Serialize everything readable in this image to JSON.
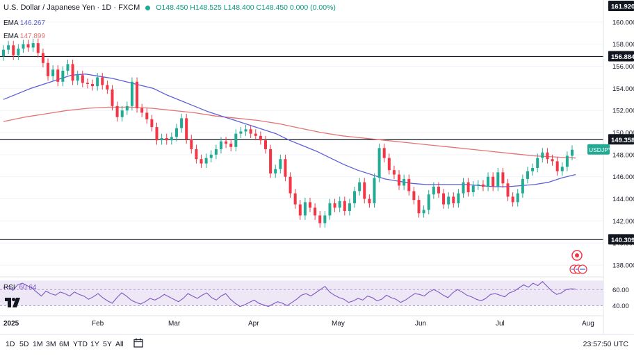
{
  "header": {
    "symbol": "U.S. Dollar / Japanese Yen · 1D · FXCM",
    "ohlc": "O148.450 H148.525 L148.400 C148.450 0.000 (0.00%)"
  },
  "indicators": {
    "ema1_label": "EMA",
    "ema1_value": "146.267",
    "ema2_label": "EMA",
    "ema2_value": "147.899",
    "rsi_label": "RSI",
    "rsi_value": "60.64"
  },
  "bottom_bar": {
    "timeframes": [
      "1D",
      "5D",
      "1M",
      "3M",
      "6M",
      "YTD",
      "1Y",
      "5Y",
      "All"
    ],
    "clock": "23:57:50 UTC"
  },
  "colors": {
    "up": "#22ab94",
    "down": "#f23645",
    "ema_fast": "#5b5fd6",
    "ema_slow": "#e57373",
    "rsi": "#7e57c2",
    "rsi_band": "#ede7f6"
  },
  "chart_data": {
    "type": "candlestick",
    "title": "U.S. Dollar / Japanese Yen · 1D · FXCM",
    "y_range": [
      137,
      162
    ],
    "y_ticks": [
      138,
      140,
      142,
      144,
      146,
      148,
      150,
      152,
      154,
      156,
      158,
      160
    ],
    "y_tick_labels": [
      "138.000",
      "140.000",
      "142.000",
      "144.000",
      "146.000",
      "148.000",
      "150.000",
      "152.000",
      "154.000",
      "156.000",
      "158.000",
      "160.000"
    ],
    "price_badges": [
      {
        "label": "161.920",
        "value": 161.92
      },
      {
        "label": "156.884",
        "value": 156.884
      },
      {
        "label": "149.358",
        "value": 149.358
      },
      {
        "label": "140.309",
        "value": 140.309
      }
    ],
    "horizontal_levels": [
      156.884,
      149.358,
      140.309
    ],
    "symbol_badge": "USDJPY",
    "x_labels": [
      "2025",
      "Feb",
      "Mar",
      "Apr",
      "May",
      "Jun",
      "Jul",
      "Aug"
    ],
    "closes": [
      157.5,
      157.9,
      157.0,
      157.6,
      158.0,
      157.7,
      158.1,
      157.2,
      156.3,
      155.1,
      155.7,
      154.6,
      155.6,
      156.2,
      154.7,
      155.2,
      154.5,
      154.4,
      154.2,
      155.0,
      154.3,
      153.9,
      152.4,
      151.4,
      152.0,
      152.4,
      154.6,
      152.2,
      151.8,
      151.2,
      150.5,
      149.3,
      149.5,
      149.3,
      149.6,
      150.4,
      151.3,
      149.4,
      148.5,
      147.6,
      147.2,
      147.7,
      148.0,
      148.5,
      149.2,
      149.0,
      148.7,
      149.9,
      150.1,
      150.3,
      149.9,
      149.7,
      149.3,
      148.5,
      146.3,
      146.7,
      147.6,
      146.0,
      144.5,
      143.5,
      142.5,
      143.7,
      143.2,
      142.5,
      141.8,
      142.5,
      143.6,
      143.2,
      143.8,
      142.9,
      143.6,
      144.7,
      145.5,
      144.0,
      143.6,
      145.9,
      148.6,
      147.7,
      146.6,
      146.2,
      145.2,
      145.8,
      144.7,
      143.9,
      142.7,
      143.0,
      144.4,
      145.1,
      144.5,
      143.5,
      144.2,
      143.6,
      144.5,
      145.5,
      144.6,
      145.2,
      145.3,
      145.1,
      146.0,
      145.1,
      146.4,
      145.4,
      144.2,
      143.7,
      144.5,
      145.8,
      146.5,
      146.8,
      147.7,
      148.2,
      147.6,
      147.4,
      146.5,
      146.9,
      147.9,
      148.45
    ],
    "ema_fast": [
      153.0,
      153.5,
      154.0,
      154.4,
      154.8,
      155.2,
      155.3,
      155.1,
      154.9,
      154.6,
      154.3,
      154.0,
      153.4,
      152.9,
      152.4,
      151.9,
      151.5,
      151.1,
      150.7,
      150.3,
      149.9,
      149.3,
      148.8,
      148.3,
      147.7,
      147.1,
      146.6,
      146.2,
      145.8,
      145.6,
      145.4,
      145.3,
      145.3,
      145.3,
      145.3,
      145.2,
      145.1,
      145.1,
      145.2,
      145.3,
      145.5,
      145.9,
      146.2
    ],
    "ema_slow": [
      151.0,
      151.4,
      151.7,
      152.0,
      152.2,
      152.3,
      152.3,
      152.2,
      152.0,
      151.8,
      151.5,
      151.3,
      151.1,
      150.8,
      150.4,
      150.0,
      149.7,
      149.5,
      149.3,
      149.1,
      148.9,
      148.7,
      148.5,
      148.3,
      148.1,
      147.9,
      147.8,
      147.7
    ],
    "rsi": {
      "y_range": [
        30,
        75
      ],
      "levels": [
        40,
        60
      ],
      "level_labels": [
        "40.00",
        "60.00"
      ],
      "values": [
        62,
        64,
        59,
        66,
        68,
        65,
        62,
        57,
        52,
        58,
        55,
        53,
        57,
        55,
        52,
        57,
        54,
        52,
        48,
        51,
        55,
        50,
        46,
        43,
        50,
        56,
        52,
        47,
        44,
        42,
        45,
        49,
        47,
        50,
        54,
        51,
        48,
        45,
        49,
        55,
        52,
        49,
        53,
        56,
        50,
        47,
        52,
        55,
        48,
        43,
        39,
        41,
        44,
        47,
        43,
        41,
        39,
        42,
        45,
        43,
        40,
        44,
        48,
        53,
        55,
        52,
        56,
        60,
        64,
        57,
        53,
        50,
        48,
        44,
        46,
        49,
        47,
        52,
        50,
        46,
        48,
        53,
        50,
        48,
        44,
        47,
        51,
        55,
        54,
        52,
        57,
        60,
        57,
        53,
        50,
        56,
        60,
        57,
        53,
        51,
        48,
        46,
        49,
        54,
        55,
        53,
        51,
        56,
        58,
        62,
        66,
        63,
        68,
        65,
        70,
        64,
        58,
        54,
        56,
        60,
        61,
        60.64
      ]
    }
  }
}
